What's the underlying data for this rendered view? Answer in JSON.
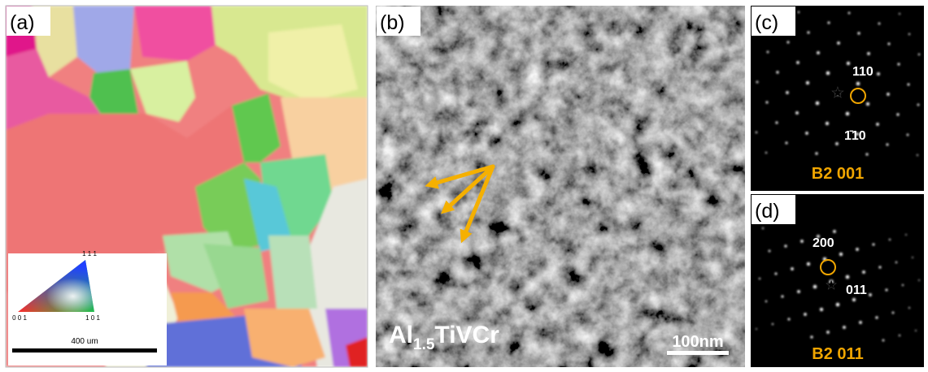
{
  "panel_a": {
    "label": "(a)",
    "ipf_top": "1 1 1",
    "ipf_left": "0 0 1",
    "ipf_right": "1 0 1",
    "scale_bar": "400 um"
  },
  "panel_b": {
    "label": "(b)",
    "formula": {
      "base": "Al",
      "sub": "1.5",
      "rest": "TiVCr"
    },
    "scale_bar": "100nm"
  },
  "panel_c": {
    "label": "(c)",
    "spot_1": "110",
    "spot_2": "1̄10",
    "zone": "B2 001"
  },
  "panel_d": {
    "label": "(d)",
    "spot_1": "200",
    "spot_2": "011",
    "zone": "B2 011"
  }
}
